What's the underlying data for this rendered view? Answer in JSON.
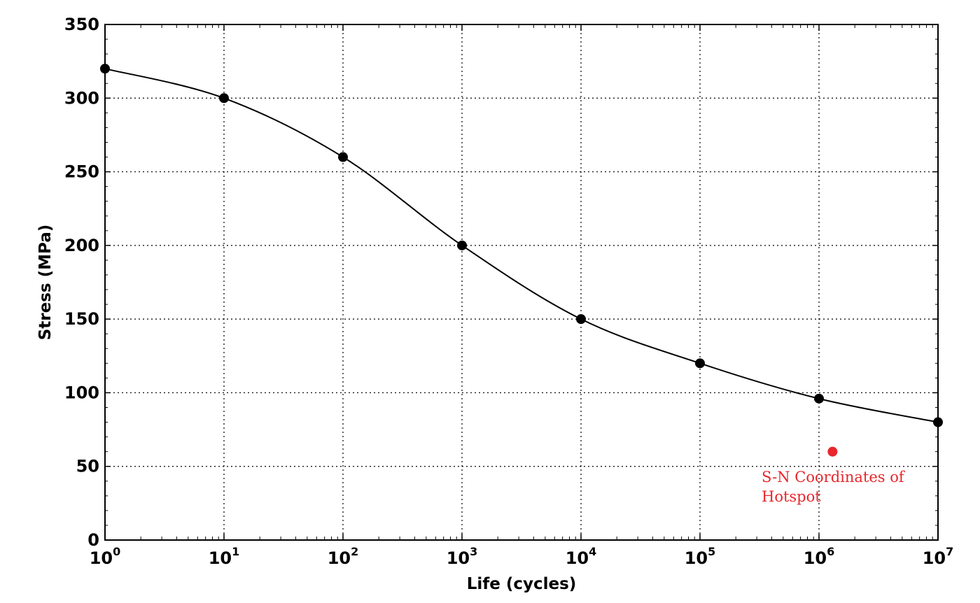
{
  "chart_data": {
    "type": "line",
    "xlabel": "Life (cycles)",
    "ylabel": "Stress (MPa)",
    "x_scale": "log",
    "xlim": [
      1,
      10000000
    ],
    "ylim": [
      0,
      350
    ],
    "grid": true,
    "x_ticks": [
      {
        "base": "10",
        "exp": "0"
      },
      {
        "base": "10",
        "exp": "1"
      },
      {
        "base": "10",
        "exp": "2"
      },
      {
        "base": "10",
        "exp": "3"
      },
      {
        "base": "10",
        "exp": "4"
      },
      {
        "base": "10",
        "exp": "5"
      },
      {
        "base": "10",
        "exp": "6"
      },
      {
        "base": "10",
        "exp": "7"
      }
    ],
    "y_ticks": [
      "0",
      "50",
      "100",
      "150",
      "200",
      "250",
      "300",
      "350"
    ],
    "series": [
      {
        "color": "#000000",
        "x": [
          1,
          10,
          100,
          1000,
          10000,
          100000,
          1000000,
          10000000
        ],
        "y": [
          320,
          300,
          260,
          200,
          150,
          120,
          96,
          80
        ]
      }
    ],
    "hotspot": {
      "x": 1300000,
      "y": 60,
      "color": "#e8262b",
      "label_lines": [
        "S-N Coordinates of",
        "Hotspot"
      ]
    }
  }
}
